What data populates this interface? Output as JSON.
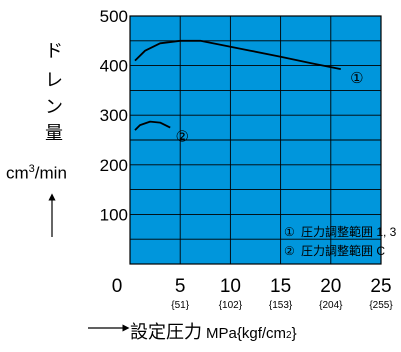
{
  "chart_data": {
    "type": "line",
    "ylabel": [
      "ド",
      "レ",
      "ン",
      "量"
    ],
    "yunit": {
      "base": "cm",
      "sup": "3",
      "rest": "/min"
    },
    "xlabel": {
      "main": "設定圧力",
      "unit": "MPa{kgf/cm",
      "sup": "2",
      "close": "}"
    },
    "xlim": [
      0,
      25
    ],
    "ylim": [
      0,
      500
    ],
    "xticks": [
      {
        "value": 0,
        "label": "0",
        "sub": ""
      },
      {
        "value": 5,
        "label": "5",
        "sub": "{51}"
      },
      {
        "value": 10,
        "label": "10",
        "sub": "{102}"
      },
      {
        "value": 15,
        "label": "15",
        "sub": "{153}"
      },
      {
        "value": 20,
        "label": "20",
        "sub": "{204}"
      },
      {
        "value": 25,
        "label": "25",
        "sub": "{255}"
      }
    ],
    "yticks": [
      100,
      200,
      300,
      400,
      500
    ],
    "grid": true,
    "plot_color": "#0096dc",
    "series": [
      {
        "marker": "①",
        "points": [
          [
            0.5,
            410
          ],
          [
            1.5,
            430
          ],
          [
            3,
            445
          ],
          [
            5,
            450
          ],
          [
            7,
            450
          ],
          [
            9,
            442
          ],
          [
            12,
            430
          ],
          [
            15,
            418
          ],
          [
            18,
            405
          ],
          [
            21,
            393
          ]
        ]
      },
      {
        "marker": "②",
        "points": [
          [
            0.5,
            270
          ],
          [
            1,
            280
          ],
          [
            2,
            287
          ],
          [
            3,
            285
          ],
          [
            4,
            275
          ]
        ]
      }
    ],
    "legend": [
      {
        "marker": "①",
        "text": "圧力調整範囲 1, 3"
      },
      {
        "marker": "②",
        "text": "圧力調整範囲 C"
      }
    ]
  }
}
